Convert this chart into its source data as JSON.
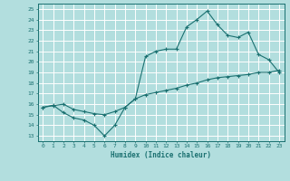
{
  "xlabel": "Humidex (Indice chaleur)",
  "ylabel": "",
  "background_color": "#b2dede",
  "grid_color": "#ffffff",
  "line_color": "#1a7070",
  "xlim": [
    -0.5,
    23.5
  ],
  "ylim": [
    12.5,
    25.5
  ],
  "xticks": [
    0,
    1,
    2,
    3,
    4,
    5,
    6,
    7,
    8,
    9,
    10,
    11,
    12,
    13,
    14,
    15,
    16,
    17,
    18,
    19,
    20,
    21,
    22,
    23
  ],
  "yticks": [
    13,
    14,
    15,
    16,
    17,
    18,
    19,
    20,
    21,
    22,
    23,
    24,
    25
  ],
  "line1_x": [
    0,
    1,
    2,
    3,
    4,
    5,
    6,
    7,
    8,
    9,
    10,
    11,
    12,
    13,
    14,
    15,
    16,
    17,
    18,
    19,
    20,
    21,
    22,
    23
  ],
  "line1_y": [
    15.7,
    15.9,
    15.2,
    14.7,
    14.5,
    14.0,
    13.0,
    14.0,
    15.7,
    16.5,
    20.5,
    21.0,
    21.2,
    21.2,
    23.3,
    24.0,
    24.8,
    23.5,
    22.5,
    22.3,
    22.8,
    20.7,
    20.2,
    19.0
  ],
  "line2_x": [
    0,
    1,
    2,
    3,
    4,
    5,
    6,
    7,
    8,
    9,
    10,
    11,
    12,
    13,
    14,
    15,
    16,
    17,
    18,
    19,
    20,
    21,
    22,
    23
  ],
  "line2_y": [
    15.7,
    15.85,
    16.0,
    15.5,
    15.3,
    15.1,
    15.0,
    15.3,
    15.7,
    16.5,
    16.9,
    17.1,
    17.3,
    17.5,
    17.8,
    18.0,
    18.3,
    18.5,
    18.6,
    18.7,
    18.8,
    19.0,
    19.0,
    19.2
  ]
}
